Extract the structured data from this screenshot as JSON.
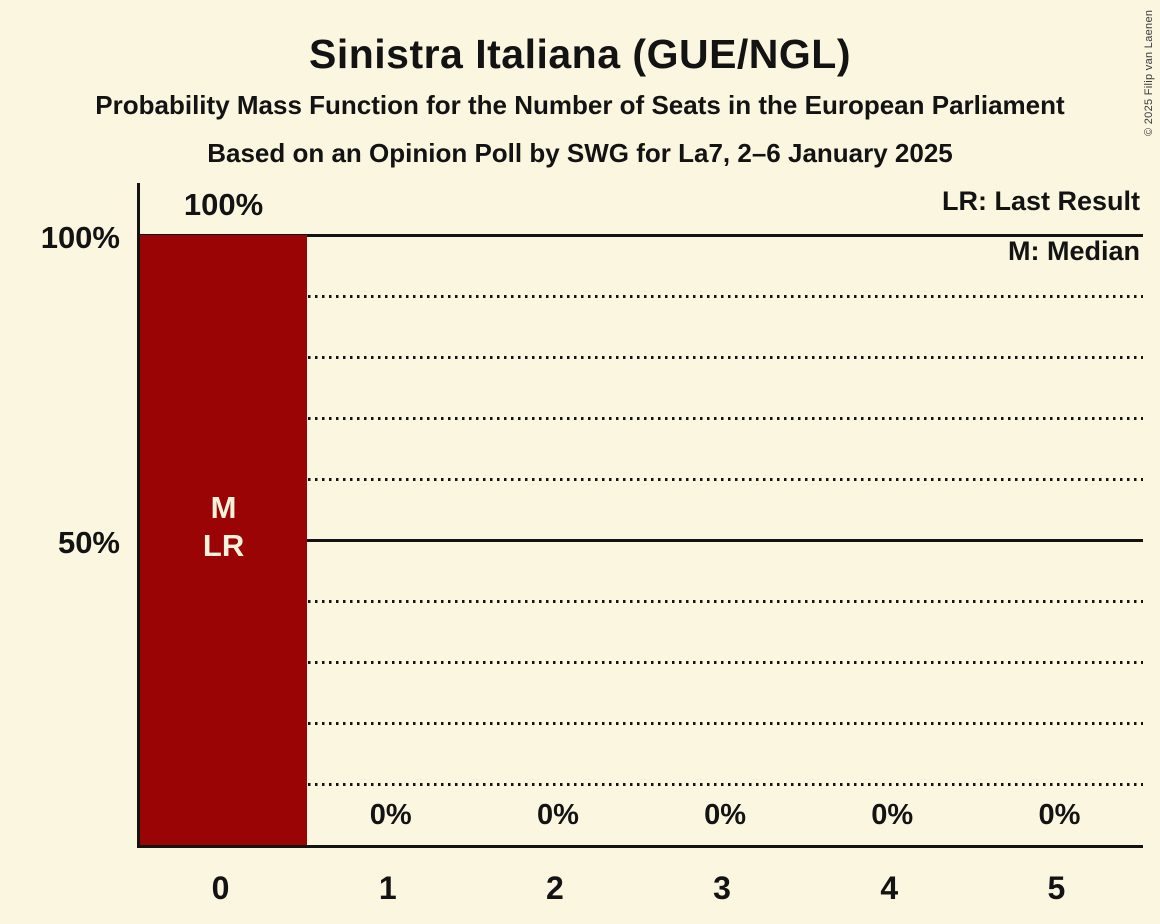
{
  "title": "Sinistra Italiana (GUE/NGL)",
  "subtitle": "Probability Mass Function for the Number of Seats in the European Parliament",
  "poll_line": "Based on an Opinion Poll by SWG for La7, 2–6 January 2025",
  "copyright": "© 2025 Filip van Laenen",
  "legend": {
    "lr_label": "LR: Last Result",
    "m_label": "M: Median"
  },
  "colors": {
    "background": "#FBF6E0",
    "bar": "#9A0404",
    "text": "#131313",
    "bar_label_text": "#F8F2DC"
  },
  "chart_data": {
    "type": "bar",
    "title": "Sinistra Italiana (GUE/NGL)",
    "categories": [
      "0",
      "1",
      "2",
      "3",
      "4",
      "5"
    ],
    "values": [
      100,
      0,
      0,
      0,
      0,
      0
    ],
    "value_labels": [
      "100%",
      "0%",
      "0%",
      "0%",
      "0%",
      "0%"
    ],
    "xlabel": "",
    "ylabel": "",
    "ylim": [
      0,
      100
    ],
    "y_tick_labels": [
      {
        "value": 100,
        "label": "100%"
      },
      {
        "value": 50,
        "label": "50%"
      }
    ],
    "gridlines": {
      "step": 10,
      "solid_at": [
        50,
        100
      ],
      "style": "dotted"
    },
    "legend_position": "top-right",
    "annotations": [
      {
        "category": "0",
        "lines": [
          "M",
          "LR"
        ],
        "meaning": "Median and Last Result at 0 seats"
      }
    ]
  }
}
